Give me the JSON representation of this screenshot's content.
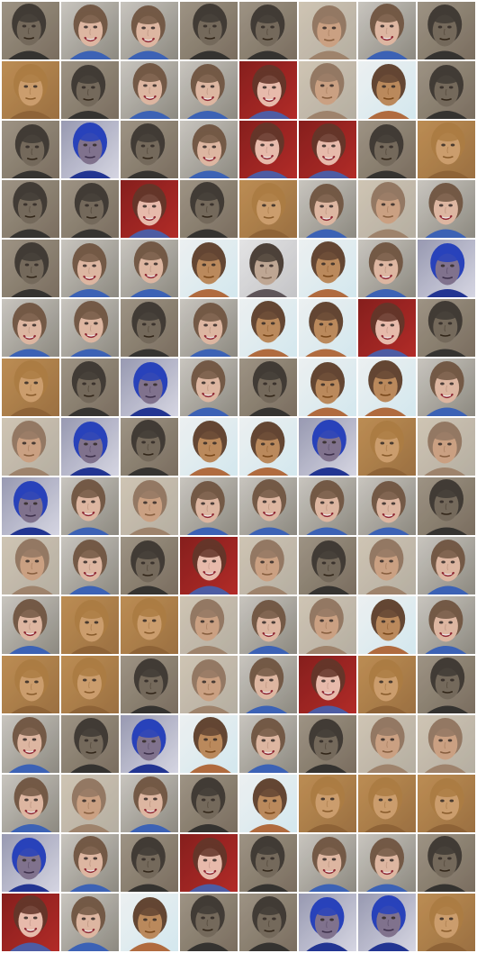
{
  "sheet": {
    "kind": "generated face samples",
    "rows": 16,
    "columns": 8,
    "palette": {
      "background": "#ffffff"
    },
    "types": {
      "G": {
        "bg": "#8d8a80",
        "bg2": "#d9d6cf",
        "skin": "#dcb39e",
        "hair": "#6e533f",
        "shirt": "#355cb2",
        "smile": true
      },
      "D": {
        "bg": "#7a6d5e",
        "bg2": "#a79d8d",
        "skin": "#6f6355",
        "hair": "#3a342d",
        "shirt": "#2d2b28",
        "smile": false
      },
      "O": {
        "bg": "#9c6f3f",
        "bg2": "#c69455",
        "skin": "#c99a68",
        "hair": "#a8773c",
        "shirt": "#8a5d2f",
        "smile": false
      },
      "B": {
        "bg": "#d7ecf3",
        "bg2": "#f7f7f7",
        "skin": "#b88556",
        "hair": "#5d3f2b",
        "shirt": "#ad6538",
        "smile": false
      },
      "U": {
        "bg": "#d9d9e6",
        "bg2": "#8a8ca8",
        "skin": "#7b6d89",
        "hair": "#203bb8",
        "shirt": "#1a2d8e",
        "smile": false
      },
      "R": {
        "bg": "#b42825",
        "bg2": "#7c1716",
        "skin": "#e6b8a8",
        "hair": "#5f2d21",
        "shirt": "#4656a0",
        "smile": true
      },
      "P": {
        "bg": "#b7b0a3",
        "bg2": "#d7cdb9",
        "skin": "#c89d7d",
        "hair": "#8f735d",
        "shirt": "#9b7e66",
        "smile": false
      },
      "Y": {
        "bg": "#c7bfa9",
        "bg2": "#e6ddc7",
        "skin": "#c8a174",
        "hair": "#8f6d45",
        "shirt": "#7f6b4d",
        "smile": false
      },
      "S": {
        "bg": "#d9d9df",
        "bg2": "#f2f2f4",
        "skin": "#b7937a",
        "hair": "#5c4233",
        "shirt": "#7a5f50",
        "smile": true
      },
      "M": {
        "bg": "#c7c7c9",
        "bg2": "#efefef",
        "skin": "#bca38f",
        "hair": "#463a31",
        "shirt": "#595054",
        "smile": false
      }
    },
    "tiles": [
      [
        "D",
        "G",
        "G",
        "D",
        "D",
        "P",
        "G",
        "D"
      ],
      [
        "O",
        "D",
        "G",
        "G",
        "R",
        "P",
        "B",
        "D"
      ],
      [
        "D",
        "U",
        "D",
        "G",
        "R",
        "R",
        "D",
        "O"
      ],
      [
        "D",
        "D",
        "R",
        "D",
        "O",
        "G",
        "P",
        "G"
      ],
      [
        "D",
        "G",
        "G",
        "B",
        "M",
        "B",
        "G",
        "U"
      ],
      [
        "G",
        "G",
        "D",
        "G",
        "B",
        "B",
        "R",
        "D"
      ],
      [
        "O",
        "D",
        "U",
        "G",
        "D",
        "B",
        "B",
        "G"
      ],
      [
        "P",
        "U",
        "D",
        "B",
        "B",
        "U",
        "O",
        "P"
      ],
      [
        "U",
        "G",
        "P",
        "G",
        "G",
        "G",
        "G",
        "D"
      ],
      [
        "P",
        "G",
        "D",
        "R",
        "P",
        "D",
        "P",
        "G"
      ],
      [
        "G",
        "O",
        "O",
        "P",
        "G",
        "P",
        "B",
        "G"
      ],
      [
        "O",
        "O",
        "D",
        "P",
        "G",
        "R",
        "O",
        "D"
      ],
      [
        "G",
        "D",
        "U",
        "B",
        "G",
        "D",
        "P",
        "P"
      ],
      [
        "G",
        "P",
        "G",
        "D",
        "B",
        "O",
        "O",
        "O"
      ],
      [
        "U",
        "G",
        "D",
        "R",
        "D",
        "G",
        "G",
        "D"
      ],
      [
        "R",
        "G",
        "B",
        "D",
        "D",
        "U",
        "U",
        "O"
      ]
    ]
  }
}
